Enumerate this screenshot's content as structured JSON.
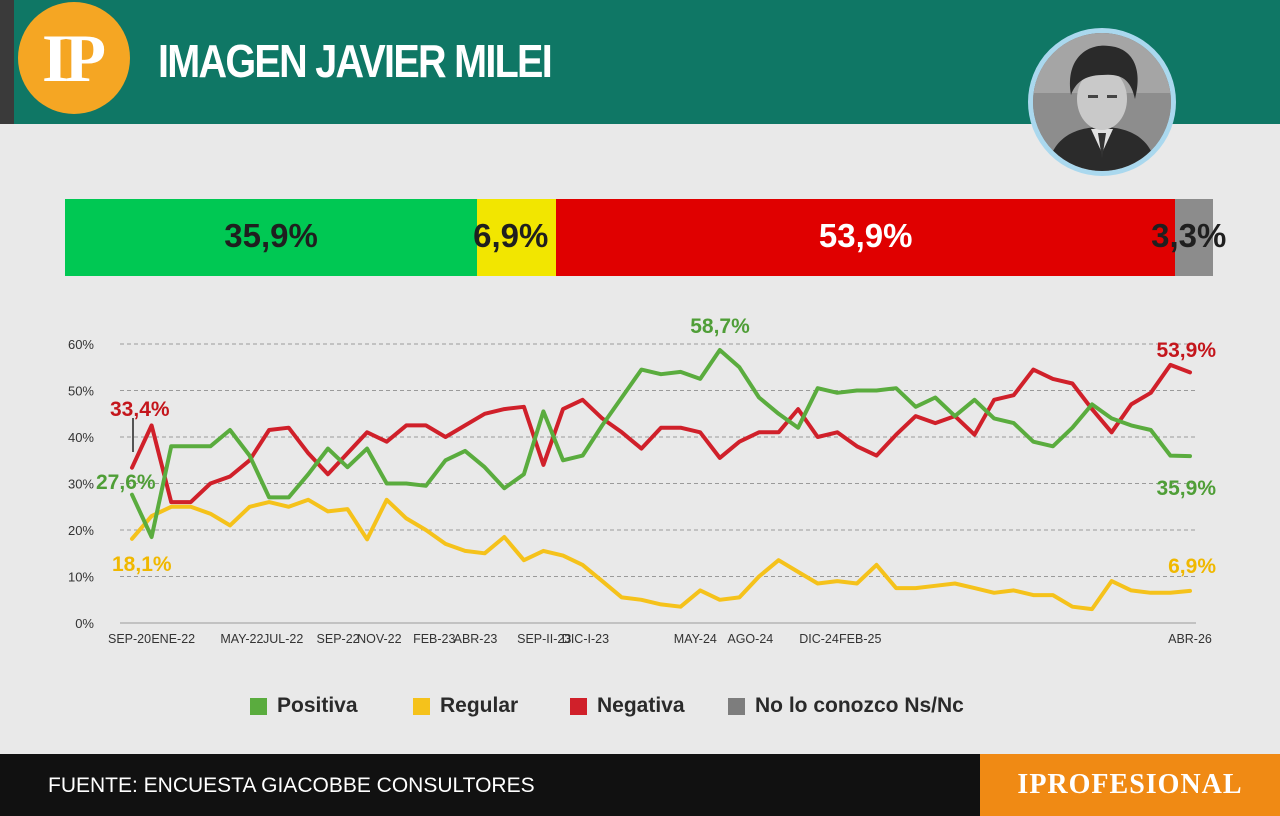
{
  "header": {
    "logo_text": "IP",
    "title": "IMAGEN JAVIER MILEI"
  },
  "summary": {
    "segments": [
      {
        "name": "positive",
        "value": 35.9,
        "label": "35,9%",
        "color": "#00c853",
        "text_color": "#1f1f1f"
      },
      {
        "name": "regular",
        "value": 6.9,
        "label": "6,9%",
        "color": "#f2e600",
        "text_color": "#1f1f1f"
      },
      {
        "name": "negative",
        "value": 53.9,
        "label": "53,9%",
        "color": "#e00000",
        "text_color": "#ffffff"
      },
      {
        "name": "unknown",
        "value": 3.3,
        "label": "3,3%",
        "color": "#8c8c8c",
        "text_color": "#1f1f1f"
      }
    ]
  },
  "legend": {
    "items": [
      {
        "label": "Positiva",
        "color": "#5aac3e"
      },
      {
        "label": "Regular",
        "color": "#f5c21b"
      },
      {
        "label": "Negativa",
        "color": "#d0202a"
      },
      {
        "label": "No lo conozco  Ns/Nc",
        "color": "#7d7d7d"
      }
    ]
  },
  "chart_data": {
    "type": "line",
    "ylim": [
      0,
      60
    ],
    "yticks": [
      0,
      10,
      20,
      30,
      40,
      50,
      60
    ],
    "ytick_labels": [
      "0%",
      "10%",
      "20%",
      "30%",
      "40%",
      "50%",
      "60%"
    ],
    "grid": true,
    "x_tick_labels": [
      {
        "i": 0,
        "label": "SEP-20"
      },
      {
        "i": 3,
        "label": "ENE-22"
      },
      {
        "i": 8,
        "label": "MAY-22"
      },
      {
        "i": 11,
        "label": "JUL-22"
      },
      {
        "i": 15,
        "label": "SEP-22"
      },
      {
        "i": 18,
        "label": "NOV-22"
      },
      {
        "i": 22,
        "label": "FEB-23"
      },
      {
        "i": 25,
        "label": "ABR-23"
      },
      {
        "i": 30,
        "label": "SEP-II-23"
      },
      {
        "i": 33,
        "label": "DIC-I-23"
      },
      {
        "i": 41,
        "label": "MAY-24"
      },
      {
        "i": 45,
        "label": "AGO-24"
      },
      {
        "i": 50,
        "label": "DIC-24"
      },
      {
        "i": 53,
        "label": "FEB-25"
      },
      {
        "i": 77,
        "label": "ABR-26"
      }
    ],
    "series": [
      {
        "name": "Positiva",
        "color": "#5aac3e",
        "values": [
          27.6,
          18.5,
          38,
          38,
          38,
          41.5,
          36,
          27,
          27,
          32,
          37.5,
          33.5,
          37.5,
          30,
          30,
          29.5,
          35,
          37,
          33.5,
          29,
          32,
          45.5,
          35,
          36,
          42.5,
          48.5,
          54.5,
          53.5,
          54,
          52.5,
          58.7,
          55,
          48.5,
          45,
          42,
          50.5,
          49.5,
          50,
          50,
          50.5,
          46.5,
          48.5,
          44.5,
          48,
          44,
          43,
          39,
          38,
          42,
          47,
          44,
          42.5,
          41.5,
          36,
          35.9
        ]
      },
      {
        "name": "Regular",
        "color": "#f5c21b",
        "values": [
          18.1,
          23,
          25,
          25,
          23.5,
          21,
          25,
          26,
          25,
          26.5,
          24,
          24.5,
          18,
          26.5,
          22.5,
          20,
          17,
          15.5,
          15,
          18.5,
          13.5,
          15.5,
          14.5,
          12.5,
          9,
          5.5,
          5,
          4,
          3.5,
          7,
          5,
          5.5,
          10,
          13.5,
          11,
          8.5,
          9,
          8.5,
          12.5,
          7.5,
          7.5,
          8,
          8.5,
          7.5,
          6.5,
          7,
          6,
          6,
          3.5,
          3,
          9,
          7,
          6.5,
          6.5,
          6.9
        ]
      },
      {
        "name": "Negativa",
        "color": "#d0202a",
        "values": [
          33.4,
          42.5,
          26,
          26,
          30,
          31.5,
          35,
          41.5,
          42,
          36.5,
          32,
          36.5,
          41,
          39,
          42.5,
          42.5,
          40,
          42.5,
          45,
          46,
          46.5,
          34,
          46,
          48,
          44,
          41,
          37.5,
          42,
          42,
          41,
          35.5,
          39,
          41,
          41,
          46,
          40,
          41,
          38,
          36,
          40.5,
          44.5,
          43,
          44.5,
          40.5,
          48,
          49,
          54.5,
          52.5,
          51.5,
          46,
          41,
          47,
          49.5,
          55.5,
          53.9
        ]
      }
    ],
    "annotations": [
      {
        "text": "33,4%",
        "series": "Negativa"
      },
      {
        "text": "27,6%",
        "series": "Positiva"
      },
      {
        "text": "18,1%",
        "series": "Regular"
      },
      {
        "text": "58,7%",
        "series": "Positiva"
      },
      {
        "text": "53,9%",
        "series": "Negativa"
      },
      {
        "text": "35,9%",
        "series": "Positiva"
      },
      {
        "text": "6,9%",
        "series": "Regular"
      }
    ]
  },
  "footer": {
    "source": "FUENTE: ENCUESTA GIACOBBE CONSULTORES",
    "brand": "IPROFESIONAL"
  }
}
